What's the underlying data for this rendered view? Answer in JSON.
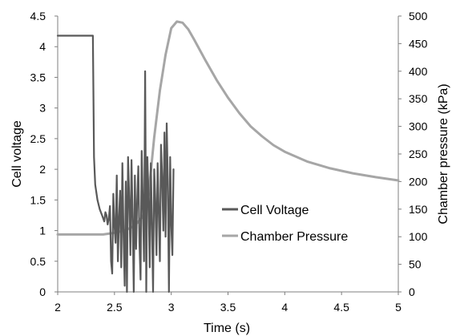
{
  "chart_data": {
    "type": "line",
    "xlabel": "Time (s)",
    "ylabel_left": "Cell voltage",
    "ylabel_right": "Chamber pressure (kPa)",
    "xlim": [
      2,
      5
    ],
    "ylim_left": [
      0,
      4.5
    ],
    "ylim_right": [
      0,
      500
    ],
    "x_ticks": [
      "2",
      "2.5",
      "3",
      "3.5",
      "4",
      "4.5",
      "5"
    ],
    "y_left_ticks": [
      "0",
      "0.5",
      "1",
      "1.5",
      "2",
      "2.5",
      "3",
      "3.5",
      "4",
      "4.5"
    ],
    "y_right_ticks": [
      "0",
      "50",
      "100",
      "150",
      "200",
      "250",
      "300",
      "350",
      "400",
      "450",
      "500"
    ],
    "grid": false,
    "legend_placement": "center-right",
    "series": [
      {
        "name": "Cell Voltage",
        "axis": "left",
        "color": "#595959",
        "x": [
          2.0,
          2.31,
          2.32,
          2.33,
          2.35,
          2.37,
          2.39,
          2.41,
          2.42,
          2.43,
          2.44,
          2.45,
          2.46,
          2.47,
          2.48,
          2.49,
          2.5,
          2.51,
          2.52,
          2.53,
          2.54,
          2.55,
          2.56,
          2.57,
          2.58,
          2.59,
          2.6,
          2.61,
          2.62,
          2.63,
          2.64,
          2.65,
          2.66,
          2.67,
          2.68,
          2.69,
          2.7,
          2.71,
          2.72,
          2.73,
          2.74,
          2.75,
          2.76,
          2.77,
          2.775,
          2.78,
          2.79,
          2.8,
          2.81,
          2.82,
          2.83,
          2.84,
          2.85,
          2.86,
          2.87,
          2.88,
          2.89,
          2.9,
          2.91,
          2.92,
          2.93,
          2.94,
          2.95,
          2.96,
          2.97,
          2.98,
          2.99,
          3.0,
          3.01,
          3.02
        ],
        "values": [
          4.18,
          4.18,
          2.2,
          1.75,
          1.5,
          1.35,
          1.25,
          1.15,
          1.3,
          1.25,
          1.1,
          1.2,
          1.4,
          0.5,
          0.3,
          1.6,
          1.1,
          0.8,
          1.9,
          0.5,
          1.2,
          1.65,
          0.4,
          2.1,
          0.9,
          0.1,
          1.8,
          0.0,
          2.2,
          1.5,
          0.6,
          2.15,
          1.2,
          0.0,
          1.9,
          0.7,
          1.5,
          2.05,
          0.8,
          0.2,
          2.3,
          1.4,
          0.5,
          3.6,
          2.0,
          0.0,
          2.2,
          1.6,
          0.4,
          2.1,
          1.1,
          0.0,
          2.0,
          1.5,
          0.6,
          2.1,
          1.3,
          0.5,
          2.4,
          1.9,
          1.0,
          2.6,
          0.9,
          2.75,
          1.8,
          0.0,
          2.2,
          1.1,
          0.6,
          2.0
        ]
      },
      {
        "name": "Chamber Pressure",
        "axis": "right",
        "color": "#a6a6a6",
        "x": [
          2.0,
          2.2,
          2.4,
          2.5,
          2.6,
          2.65,
          2.7,
          2.75,
          2.8,
          2.85,
          2.9,
          2.95,
          3.0,
          3.05,
          3.1,
          3.15,
          3.2,
          3.3,
          3.4,
          3.5,
          3.6,
          3.7,
          3.8,
          3.9,
          4.0,
          4.2,
          4.4,
          4.6,
          4.8,
          5.0
        ],
        "values": [
          104,
          104,
          104,
          107,
          112,
          117,
          125,
          137,
          175,
          280,
          365,
          430,
          478,
          490,
          488,
          476,
          458,
          420,
          384,
          352,
          324,
          300,
          282,
          266,
          254,
          236,
          224,
          215,
          208,
          202
        ]
      }
    ]
  }
}
